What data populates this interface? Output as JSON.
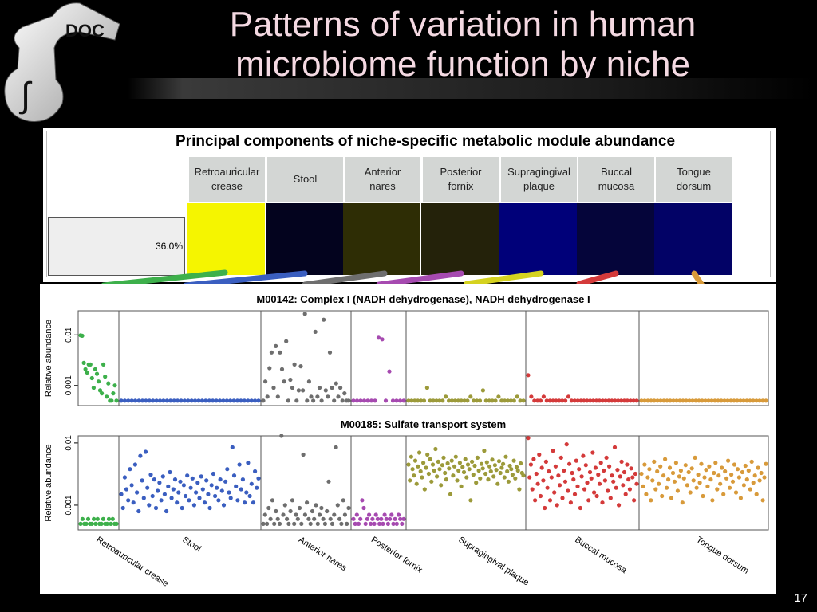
{
  "slide": {
    "title": "Patterns of variation in human microbiome function by niche",
    "number": "17"
  },
  "heatmap": {
    "title": "Principal components of niche-specific metabolic module abundance",
    "pc_label": "36.0%",
    "niches": [
      {
        "label": "Retroauricular\ncrease",
        "color": "#f5f500",
        "stripe": "#3db04b"
      },
      {
        "label": "Stool",
        "color": "#03031e",
        "stripe": "#3a5ec0"
      },
      {
        "label": "Anterior\nnares",
        "color": "#2e2d05",
        "stripe": "#6e6e6e"
      },
      {
        "label": "Posterior\nfornix",
        "color": "#24220a",
        "stripe": "#a64ab0"
      },
      {
        "label": "Supragingival\nplaque",
        "color": "#000079",
        "stripe": "#d5d21f"
      },
      {
        "label": "Buccal\nmucosa",
        "color": "#05053a",
        "stripe": "#d43a3a"
      },
      {
        "label": "Tongue\ndorsum",
        "color": "#020266",
        "stripe": "#d89a3a"
      }
    ]
  },
  "chart_data": [
    {
      "type": "scatter",
      "title": "M00142: Complex I (NADH dehydrogenase), NADH dehydrogenase I",
      "ylabel": "Relative abundance",
      "yscale": "log",
      "ylim": [
        0.0004,
        0.03
      ],
      "yticks": [
        "0.001",
        "0.01"
      ],
      "series": [
        {
          "name": "Retroauricular crease",
          "color": "#3db04b",
          "values": [
            0.0098,
            0.0096,
            0.0028,
            0.0021,
            0.0018,
            0.0026,
            0.0026,
            0.0014,
            0.0009,
            0.0021,
            0.0017,
            0.0012,
            0.0008,
            0.0007,
            0.0026,
            0.0015,
            0.0006,
            0.0011,
            0.0005,
            0.0005,
            0.0007,
            0.001,
            0.0005
          ]
        },
        {
          "name": "Stool",
          "color": "#3a5ec0",
          "values": [
            0.0005,
            0.0005,
            0.0005,
            0.0005,
            0.0005,
            0.0005,
            0.0005,
            0.0005,
            0.0005,
            0.0005,
            0.0005,
            0.0005,
            0.0005,
            0.0005,
            0.0005,
            0.0005,
            0.0005,
            0.0005,
            0.0005,
            0.0005,
            0.0005,
            0.0005,
            0.0005,
            0.0005,
            0.0005,
            0.0005,
            0.0005,
            0.0005,
            0.0005,
            0.0005,
            0.0005,
            0.0005,
            0.0005,
            0.0005,
            0.0005,
            0.0005,
            0.0005,
            0.0005,
            0.0005,
            0.0005
          ]
        },
        {
          "name": "Anterior nares",
          "color": "#6e6e6e",
          "values": [
            0.0005,
            0.0012,
            0.0006,
            0.0022,
            0.0045,
            0.0009,
            0.006,
            0.0006,
            0.0045,
            0.0021,
            0.0012,
            0.0075,
            0.0005,
            0.0013,
            0.0009,
            0.0026,
            0.0005,
            0.0008,
            0.0024,
            0.0008,
            0.026,
            0.0005,
            0.0012,
            0.0006,
            0.0005,
            0.0115,
            0.0006,
            0.0009,
            0.0005,
            0.02,
            0.0008,
            0.0006,
            0.0045,
            0.0009,
            0.0005,
            0.0011,
            0.0006,
            0.0009,
            0.0005,
            0.0007,
            0.0005,
            0.0005
          ]
        },
        {
          "name": "Posterior fornix",
          "color": "#a64ab0",
          "values": [
            0.0005,
            0.0005,
            0.0005,
            0.0005,
            0.0005,
            0.0005,
            0.0005,
            0.0088,
            0.0082,
            0.0005,
            0.0019,
            0.0005,
            0.0005,
            0.0005,
            0.0005
          ]
        },
        {
          "name": "Supragingival plaque",
          "color": "#9c9a3a",
          "values": [
            0.0005,
            0.0005,
            0.0005,
            0.0005,
            0.0005,
            0.0005,
            0.0009,
            0.0005,
            0.0005,
            0.0005,
            0.0005,
            0.0005,
            0.0006,
            0.0005,
            0.0005,
            0.0005,
            0.0005,
            0.0005,
            0.0005,
            0.0005,
            0.0006,
            0.0005,
            0.0005,
            0.0005,
            0.0008,
            0.0005,
            0.0005,
            0.0005,
            0.0005,
            0.0006,
            0.0005,
            0.0005,
            0.0005,
            0.0005,
            0.0005,
            0.0006,
            0.0005,
            0.0005
          ]
        },
        {
          "name": "Buccal mucosa",
          "color": "#d43a3a",
          "values": [
            0.0016,
            0.0006,
            0.0005,
            0.0005,
            0.0005,
            0.0006,
            0.0005,
            0.0005,
            0.0005,
            0.0005,
            0.0005,
            0.0005,
            0.0005,
            0.0006,
            0.0005,
            0.0005,
            0.0005,
            0.0005,
            0.0005,
            0.0005,
            0.0005,
            0.0005,
            0.0005,
            0.0005,
            0.0005,
            0.0005,
            0.0005,
            0.0005,
            0.0005,
            0.0005,
            0.0005,
            0.0005,
            0.0005,
            0.0005,
            0.0005,
            0.0005
          ]
        },
        {
          "name": "Tongue dorsum",
          "color": "#d89a3a",
          "values": [
            0.0005,
            0.0005,
            0.0005,
            0.0005,
            0.0005,
            0.0005,
            0.0005,
            0.0005,
            0.0005,
            0.0005,
            0.0005,
            0.0005,
            0.0005,
            0.0005,
            0.0005,
            0.0005,
            0.0005,
            0.0005,
            0.0005,
            0.0005,
            0.0005,
            0.0005,
            0.0005,
            0.0005,
            0.0005,
            0.0005,
            0.0005,
            0.0005,
            0.0005,
            0.0005,
            0.0005,
            0.0005,
            0.0005,
            0.0005,
            0.0005,
            0.0005,
            0.0005,
            0.0005,
            0.0005,
            0.0005
          ]
        }
      ]
    },
    {
      "type": "scatter",
      "title": "M00185: Sulfate transport system",
      "ylabel": "Relative abundance",
      "yscale": "log",
      "ylim": [
        0.0004,
        0.013
      ],
      "yticks": [
        "0.001",
        "0.01"
      ],
      "categories": [
        "Retroauricular crease",
        "Stool",
        "Anterior nares",
        "Posterior fornix",
        "Supragingival plaque",
        "Buccal mucosa",
        "Tongue dorsum"
      ],
      "series": [
        {
          "name": "Retroauricular crease",
          "color": "#3db04b",
          "values": [
            0.0005,
            0.0006,
            0.0005,
            0.0005,
            0.0006,
            0.0005,
            0.0005,
            0.0006,
            0.0005,
            0.0006,
            0.0005,
            0.0005,
            0.0006,
            0.0005,
            0.0005,
            0.0006,
            0.0005,
            0.0006,
            0.0005,
            0.0005
          ]
        },
        {
          "name": "Stool",
          "color": "#3a5ec0",
          "values": [
            0.0015,
            0.0009,
            0.0028,
            0.0018,
            0.0012,
            0.0038,
            0.0021,
            0.0011,
            0.0045,
            0.0016,
            0.0008,
            0.0062,
            0.0025,
            0.0013,
            0.0072,
            0.0019,
            0.001,
            0.0031,
            0.0014,
            0.0026,
            0.0009,
            0.0017,
            0.0023,
            0.0012,
            0.0029,
            0.0015,
            0.0008,
            0.002,
            0.0034,
            0.0013,
            0.0018,
            0.0026,
            0.0011,
            0.0016,
            0.0024,
            0.0009,
            0.0021,
            0.0014,
            0.003,
            0.0012,
            0.0019,
            0.0027,
            0.001,
            0.0016,
            0.0023,
            0.0013,
            0.0029,
            0.0018,
            0.0011,
            0.0025,
            0.0015,
            0.0009,
            0.0021,
            0.0032,
            0.0014,
            0.0019,
            0.0012,
            0.0026,
            0.0017,
            0.001,
            0.0024,
            0.0038,
            0.0016,
            0.0013,
            0.0085,
            0.003,
            0.002,
            0.0012,
            0.0045,
            0.0018,
            0.0026,
            0.0011,
            0.0016,
            0.0048,
            0.0014,
            0.0022,
            0.0011,
            0.0035,
            0.0019,
            0.0027
          ]
        },
        {
          "name": "Anterior nares",
          "color": "#6e6e6e",
          "values": [
            0.0005,
            0.0007,
            0.0005,
            0.0009,
            0.0006,
            0.0012,
            0.0005,
            0.0008,
            0.0006,
            0.0005,
            0.013,
            0.0007,
            0.001,
            0.0006,
            0.0005,
            0.0008,
            0.0012,
            0.0005,
            0.0007,
            0.0006,
            0.0009,
            0.0005,
            0.0065,
            0.0007,
            0.0011,
            0.0006,
            0.0005,
            0.0008,
            0.0006,
            0.001,
            0.0005,
            0.0007,
            0.0009,
            0.0006,
            0.0005,
            0.0008,
            0.0024,
            0.0006,
            0.0005,
            0.0007,
            0.0085,
            0.001,
            0.0006,
            0.0005,
            0.0012,
            0.0007,
            0.0005,
            0.0009
          ]
        },
        {
          "name": "Posterior fornix",
          "color": "#a64ab0",
          "values": [
            0.0006,
            0.0005,
            0.0007,
            0.0005,
            0.0006,
            0.0012,
            0.0009,
            0.0005,
            0.0006,
            0.0007,
            0.0005,
            0.0006,
            0.0005,
            0.0007,
            0.0006,
            0.0005,
            0.0006,
            0.0005,
            0.0007,
            0.0006,
            0.0005,
            0.0006,
            0.0007,
            0.0005,
            0.0006,
            0.0005,
            0.0007,
            0.0006,
            0.0005,
            0.0006
          ]
        },
        {
          "name": "Supragingival plaque",
          "color": "#9c9a3a",
          "values": [
            0.0045,
            0.0025,
            0.006,
            0.0038,
            0.003,
            0.0052,
            0.0022,
            0.0042,
            0.007,
            0.0035,
            0.0028,
            0.0048,
            0.0018,
            0.004,
            0.0065,
            0.0032,
            0.0055,
            0.0024,
            0.0045,
            0.0036,
            0.008,
            0.0029,
            0.005,
            0.0038,
            0.0021,
            0.0044,
            0.0058,
            0.0033,
            0.0026,
            0.0047,
            0.0039,
            0.0015,
            0.0052,
            0.003,
            0.0042,
            0.006,
            0.0025,
            0.0036,
            0.0048,
            0.002,
            0.0041,
            0.0034,
            0.0055,
            0.0028,
            0.0045,
            0.0038,
            0.0012,
            0.005,
            0.0031,
            0.0043,
            0.0023,
            0.0058,
            0.0036,
            0.0027,
            0.0046,
            0.0039,
            0.0075,
            0.0032,
            0.0049,
            0.0026,
            0.0042,
            0.0035,
            0.0054,
            0.0029,
            0.0044,
            0.0037,
            0.0022,
            0.0051,
            0.0033,
            0.004,
            0.0046,
            0.0028,
            0.006,
            0.0035,
            0.0024,
            0.0043,
            0.0038,
            0.0031,
            0.0052,
            0.0027,
            0.0041,
            0.0036,
            0.0018,
            0.0047,
            0.0033,
            0.003
          ]
        },
        {
          "name": "Buccal mucosa",
          "color": "#d43a3a",
          "values": [
            0.012,
            0.0028,
            0.0045,
            0.0018,
            0.0055,
            0.0012,
            0.0032,
            0.0022,
            0.0065,
            0.0014,
            0.004,
            0.0025,
            0.0009,
            0.005,
            0.0019,
            0.0035,
            0.0012,
            0.0028,
            0.0075,
            0.0016,
            0.0042,
            0.001,
            0.003,
            0.0021,
            0.0058,
            0.0013,
            0.0036,
            0.0024,
            0.0095,
            0.0017,
            0.0046,
            0.0011,
            0.0033,
            0.0026,
            0.0015,
            0.0052,
            0.002,
            0.0038,
            0.0009,
            0.0029,
            0.0062,
            0.0018,
            0.0044,
            0.0023,
            0.0012,
            0.0034,
            0.0027,
            0.007,
            0.0016,
            0.004,
            0.0014,
            0.0031,
            0.0022,
            0.0048,
            0.0011,
            0.0036,
            0.0025,
            0.0058,
            0.0017,
            0.0042,
            0.0013,
            0.003,
            0.0024,
            0.0085,
            0.0019,
            0.0037,
            0.001,
            0.0029,
            0.005,
            0.0021,
            0.0034,
            0.0015,
            0.0045,
            0.0026,
            0.0018,
            0.0039,
            0.0028,
            0.0012,
            0.0032,
            0.0022
          ]
        },
        {
          "name": "Tongue dorsum",
          "color": "#d89a3a",
          "values": [
            0.0032,
            0.002,
            0.0045,
            0.0015,
            0.0028,
            0.0038,
            0.0012,
            0.0025,
            0.005,
            0.0018,
            0.0035,
            0.0022,
            0.0042,
            0.0014,
            0.003,
            0.0055,
            0.0019,
            0.0026,
            0.004,
            0.0013,
            0.0033,
            0.0024,
            0.0048,
            0.0017,
            0.0029,
            0.0036,
            0.0011,
            0.0027,
            0.0044,
            0.0021,
            0.0034,
            0.0016,
            0.0039,
            0.0025,
            0.0058,
            0.0019,
            0.0031,
            0.0023,
            0.0046,
            0.0014,
            0.0028,
            0.0037,
            0.002,
            0.0042,
            0.0026,
            0.0012,
            0.0033,
            0.0048,
            0.0018,
            0.003,
            0.0022,
            0.004,
            0.0015,
            0.0035,
            0.0027,
            0.0052,
            0.0019,
            0.0031,
            0.0024,
            0.0045,
            0.0016,
            0.0038,
            0.0028,
            0.0013,
            0.0034,
            0.0021,
            0.0043,
            0.0026,
            0.0036,
            0.0018,
            0.005,
            0.0023,
            0.003,
            0.0015,
            0.004,
            0.0025,
            0.0033,
            0.0012,
            0.0028,
            0.0046
          ]
        }
      ]
    }
  ]
}
